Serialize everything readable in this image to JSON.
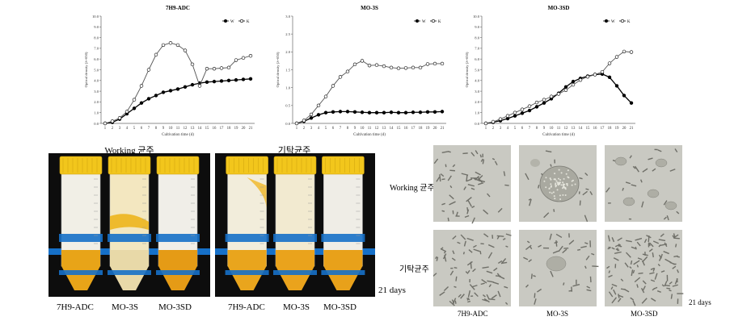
{
  "chart_data": [
    {
      "type": "line",
      "title": "7H9-ADC",
      "xlabel": "Cultivation time (d)",
      "ylabel": "Optical density (λ=650)",
      "ylim": [
        0,
        10
      ],
      "yticks": [
        "0.0",
        "1.0",
        "2.0",
        "3.0",
        "4.0",
        "5.0",
        "6.0",
        "7.0",
        "8.0",
        "9.0",
        "10.0"
      ],
      "x": [
        1,
        2,
        3,
        4,
        5,
        6,
        7,
        8,
        9,
        10,
        11,
        12,
        13,
        14,
        15,
        16,
        17,
        18,
        19,
        20,
        21
      ],
      "legend_position": "top-right",
      "series": [
        {
          "name": "W",
          "marker": "filled",
          "values": [
            0.0,
            0.1,
            0.4,
            0.9,
            1.4,
            1.9,
            2.3,
            2.6,
            2.9,
            3.05,
            3.2,
            3.4,
            3.6,
            3.75,
            3.85,
            3.9,
            3.95,
            4.0,
            4.05,
            4.1,
            4.15
          ]
        },
        {
          "name": "K",
          "marker": "open",
          "values": [
            0.0,
            0.2,
            0.5,
            1.1,
            2.2,
            3.5,
            5.0,
            6.4,
            7.3,
            7.5,
            7.3,
            6.8,
            5.5,
            3.5,
            5.1,
            5.1,
            5.15,
            5.2,
            5.9,
            6.1,
            6.3
          ]
        }
      ]
    },
    {
      "type": "line",
      "title": "MO-3S",
      "xlabel": "Cultivation time (d)",
      "ylabel": "Optical density (λ=650)",
      "ylim": [
        0,
        3
      ],
      "yticks": [
        "0.0",
        "0.5",
        "1.0",
        "1.5",
        "2.0",
        "2.5",
        "3.0"
      ],
      "x": [
        1,
        2,
        3,
        4,
        5,
        6,
        7,
        8,
        9,
        10,
        11,
        12,
        13,
        14,
        15,
        16,
        17,
        18,
        19,
        20,
        21
      ],
      "legend_position": "top-right",
      "series": [
        {
          "name": "W",
          "marker": "filled",
          "values": [
            0.0,
            0.06,
            0.15,
            0.24,
            0.3,
            0.32,
            0.33,
            0.33,
            0.32,
            0.31,
            0.3,
            0.3,
            0.3,
            0.31,
            0.3,
            0.3,
            0.31,
            0.31,
            0.32,
            0.32,
            0.33
          ]
        },
        {
          "name": "K",
          "marker": "open",
          "values": [
            0.0,
            0.08,
            0.25,
            0.5,
            0.75,
            1.05,
            1.3,
            1.45,
            1.65,
            1.75,
            1.62,
            1.63,
            1.6,
            1.56,
            1.54,
            1.55,
            1.56,
            1.56,
            1.66,
            1.67,
            1.67
          ]
        }
      ]
    },
    {
      "type": "line",
      "title": "MO-3SD",
      "xlabel": "Cultivation time (d)",
      "ylabel": "Optical density (λ=650)",
      "ylim": [
        0,
        10
      ],
      "yticks": [
        "0.0",
        "1.0",
        "2.0",
        "3.0",
        "4.0",
        "5.0",
        "6.0",
        "7.0",
        "8.0",
        "9.0",
        "10.0"
      ],
      "x": [
        1,
        2,
        3,
        4,
        5,
        6,
        7,
        8,
        9,
        10,
        11,
        12,
        13,
        14,
        15,
        16,
        17,
        18,
        19,
        20,
        21
      ],
      "legend_position": "top-right",
      "series": [
        {
          "name": "W",
          "marker": "filled",
          "values": [
            0.0,
            0.1,
            0.25,
            0.45,
            0.7,
            0.95,
            1.2,
            1.55,
            1.9,
            2.3,
            2.8,
            3.4,
            3.9,
            4.2,
            4.4,
            4.55,
            4.6,
            4.3,
            3.5,
            2.6,
            1.9
          ]
        },
        {
          "name": "K",
          "marker": "open",
          "values": [
            0.0,
            0.15,
            0.4,
            0.7,
            1.0,
            1.3,
            1.6,
            1.95,
            2.2,
            2.5,
            2.75,
            3.1,
            3.6,
            4.05,
            4.35,
            4.55,
            4.8,
            5.6,
            6.2,
            6.7,
            6.65
          ]
        }
      ]
    }
  ],
  "photos": {
    "left_title": "Working 균주",
    "right_title": "기탁균주",
    "tube_labels": [
      "7H9-ADC",
      "MO-3S",
      "MO-3SD"
    ],
    "days_label": "21 days"
  },
  "microscopy": {
    "row_labels": [
      "Working 균주",
      "기탁균주"
    ],
    "col_labels": [
      "7H9-ADC",
      "MO-3S",
      "MO-3SD"
    ],
    "days_label": "21 days"
  },
  "colors": {
    "tube_cap": "#f2c61c",
    "culture": "#e9a520",
    "rack": "#1670c8",
    "photo_bg": "#0d0d0d",
    "micro_bg": "#c9c9c2"
  }
}
